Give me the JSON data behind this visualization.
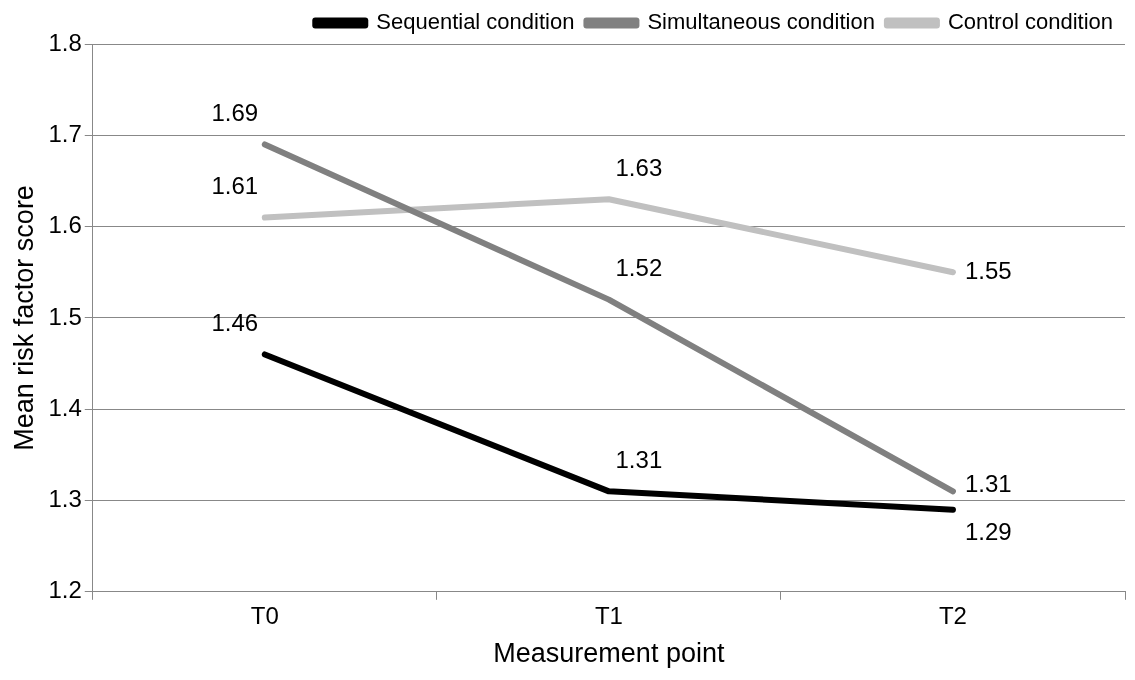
{
  "chart_data": {
    "type": "line",
    "xlabel": "Measurement point",
    "ylabel": "Mean risk factor score",
    "categories": [
      "T0",
      "T1",
      "T2"
    ],
    "series": [
      {
        "name": "Sequential condition",
        "color": "#000000",
        "values": [
          1.46,
          1.31,
          1.29
        ]
      },
      {
        "name": "Simultaneous condition",
        "color": "#808080",
        "values": [
          1.69,
          1.52,
          1.31
        ]
      },
      {
        "name": "Control condition",
        "color": "#c0c0c0",
        "values": [
          1.61,
          1.63,
          1.55
        ]
      }
    ],
    "ylim": [
      1.2,
      1.8
    ],
    "yticks": [
      1.2,
      1.3,
      1.4,
      1.5,
      1.6,
      1.7,
      1.8
    ],
    "grid": "y",
    "legend": "top",
    "data_labels": true,
    "marker": "none",
    "line_style": "solid"
  }
}
